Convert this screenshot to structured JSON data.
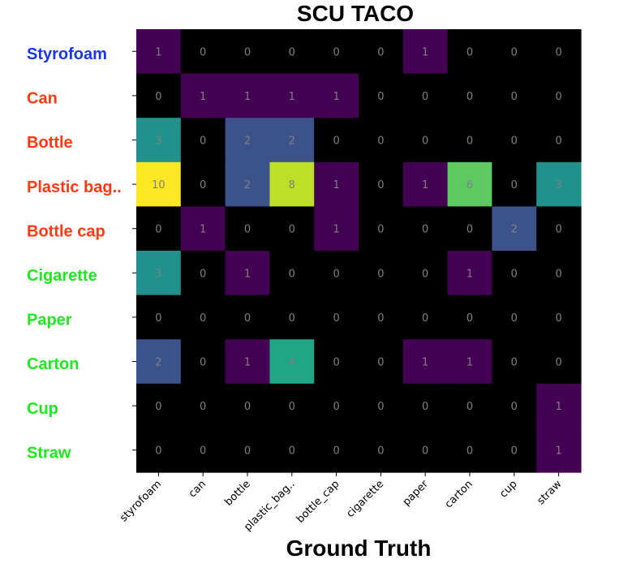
{
  "chart_data": {
    "type": "heatmap",
    "title": "SCU TACO",
    "xlabel": "Ground Truth",
    "ylabel": "",
    "row_labels": [
      "Styrofoam",
      "Can",
      "Bottle",
      "Plastic bag..",
      "Bottle cap",
      "Cigarette",
      "Paper",
      "Carton",
      "Cup",
      "Straw"
    ],
    "row_label_colors": [
      "#1a35e8",
      "#ff3a12",
      "#ff3a12",
      "#ff3a12",
      "#ff3a12",
      "#1ee81e",
      "#1ee81e",
      "#1ee81e",
      "#1ee81e",
      "#1ee81e"
    ],
    "col_labels": [
      "styrofoam",
      "can",
      "bottle",
      "plastic_bag..",
      "bottle_cap",
      "cigarette",
      "paper",
      "carton",
      "cup",
      "straw"
    ],
    "values": [
      [
        1,
        0,
        0,
        0,
        0,
        0,
        1,
        0,
        0,
        0
      ],
      [
        0,
        1,
        1,
        1,
        1,
        0,
        0,
        0,
        0,
        0
      ],
      [
        3,
        0,
        2,
        2,
        0,
        0,
        0,
        0,
        0,
        0
      ],
      [
        10,
        0,
        2,
        8,
        1,
        0,
        1,
        6,
        0,
        3
      ],
      [
        0,
        1,
        0,
        0,
        1,
        0,
        0,
        0,
        2,
        0
      ],
      [
        3,
        0,
        1,
        0,
        0,
        0,
        0,
        1,
        0,
        0
      ],
      [
        0,
        0,
        0,
        0,
        0,
        0,
        0,
        0,
        0,
        0
      ],
      [
        2,
        0,
        1,
        4,
        0,
        0,
        1,
        1,
        0,
        0
      ],
      [
        0,
        0,
        0,
        0,
        0,
        0,
        0,
        0,
        0,
        1
      ],
      [
        0,
        0,
        0,
        0,
        0,
        0,
        0,
        0,
        0,
        1
      ]
    ],
    "colormap": {
      "zero": "#000000",
      "1": "#440154",
      "2": "#3b528b",
      "3": "#21918c",
      "4": "#21a685",
      "6": "#5ec962",
      "8": "#bddf26",
      "10": "#fde725"
    },
    "grid": false
  }
}
